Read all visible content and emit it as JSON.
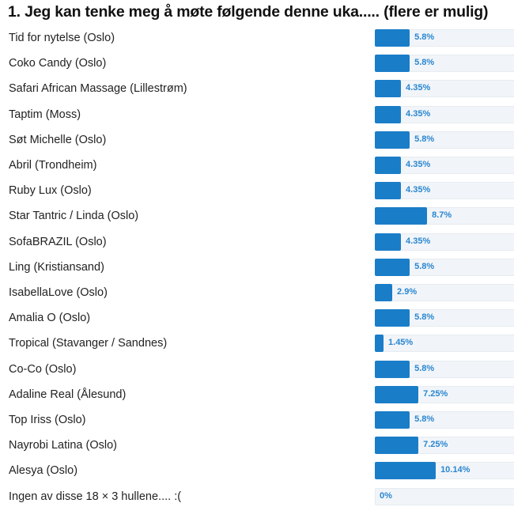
{
  "chart_data": {
    "type": "bar",
    "orientation": "horizontal",
    "title": "1. Jeg kan tenke meg å møte følgende denne uka..... (flere er mulig)",
    "categories": [
      "Tid for nytelse (Oslo)",
      "Coko Candy (Oslo)",
      "Safari African Massage (Lillestrøm)",
      "Taptim (Moss)",
      "Søt Michelle (Oslo)",
      "Abril (Trondheim)",
      "Ruby Lux (Oslo)",
      "Star Tantric / Linda (Oslo)",
      "SofaBRAZIL (Oslo)",
      "Ling (Kristiansand)",
      "IsabellaLove (Oslo)",
      "Amalia O (Oslo)",
      "Tropical (Stavanger / Sandnes)",
      "Co-Co (Oslo)",
      "Adaline Real (Ålesund)",
      "Top Iriss (Oslo)",
      "Nayrobi Latina (Oslo)",
      "Alesya (Oslo)",
      "Ingen av disse 18 × 3 hullene.... :("
    ],
    "values": [
      5.8,
      5.8,
      4.35,
      4.35,
      5.8,
      4.35,
      4.35,
      8.7,
      4.35,
      5.8,
      2.9,
      5.8,
      1.45,
      5.8,
      7.25,
      5.8,
      7.25,
      10.14,
      0
    ],
    "value_labels": [
      "5.8%",
      "5.8%",
      "4.35%",
      "4.35%",
      "5.8%",
      "4.35%",
      "4.35%",
      "8.7%",
      "4.35%",
      "5.8%",
      "2.9%",
      "5.8%",
      "1.45%",
      "5.8%",
      "7.25%",
      "5.8%",
      "7.25%",
      "10.14%",
      "0%"
    ],
    "unit": "%",
    "colors": {
      "bar": "#1a7dc8",
      "track": "#f1f5f9",
      "label": "#2a86d0"
    }
  }
}
